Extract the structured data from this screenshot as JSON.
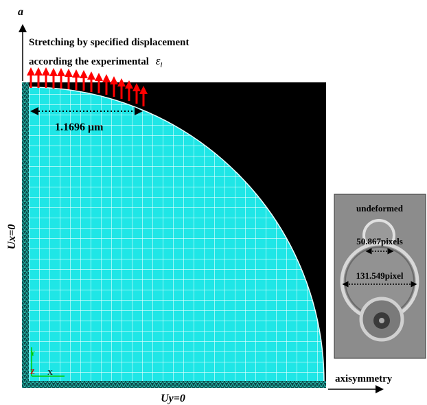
{
  "panel_label": "a",
  "load_text": {
    "line1": "Stretching by specified displacement",
    "line2": "according the experimental",
    "strain_symbol": "ε",
    "strain_subscript": "l"
  },
  "dimension": "1.1696 μm",
  "boundary": {
    "left": "Ux=0",
    "bottom": "Uy=0",
    "right": "axisymmetry"
  },
  "triad": {
    "y": "Y",
    "z": "Z",
    "x": "X"
  },
  "inset": {
    "title": "undeformed",
    "inner": "50.867pixels",
    "outer": "131.549pixel"
  }
}
